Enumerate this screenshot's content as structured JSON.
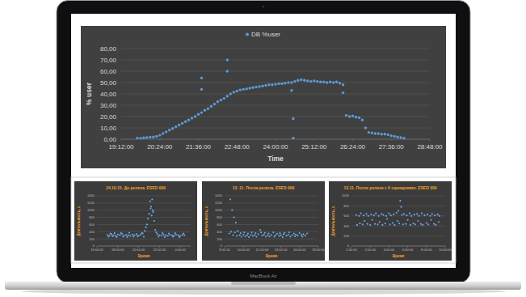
{
  "device": {
    "label": "MacBook Air"
  },
  "chart_data": [
    {
      "type": "scatter",
      "x_label": "Time",
      "y_label": "% user",
      "legend": "top",
      "grid": true,
      "xlim": [
        19.2,
        28.8
      ],
      "xticks": [
        {
          "value": 19.2,
          "label": "19:12:00"
        },
        {
          "value": 20.4,
          "label": "20:24:00"
        },
        {
          "value": 21.6,
          "label": "21:36:00"
        },
        {
          "value": 22.8,
          "label": "22:48:00"
        },
        {
          "value": 24,
          "label": "24:00:00"
        },
        {
          "value": 25.2,
          "label": "25:12:00"
        },
        {
          "value": 26.4,
          "label": "26:24:00"
        },
        {
          "value": 27.6,
          "label": "27:36:00"
        },
        {
          "value": 28.8,
          "label": "28:48:00"
        }
      ],
      "ylim": [
        0,
        80
      ],
      "yticks": [
        {
          "value": 0,
          "label": "0,00"
        },
        {
          "value": 10,
          "label": "10,00"
        },
        {
          "value": 20,
          "label": "20,00"
        },
        {
          "value": 30,
          "label": "30,00"
        },
        {
          "value": 40,
          "label": "40,00"
        },
        {
          "value": 50,
          "label": "50,00"
        },
        {
          "value": 60,
          "label": "60,00"
        },
        {
          "value": 70,
          "label": "70,00"
        },
        {
          "value": 80,
          "label": "80,00"
        }
      ],
      "series": [
        {
          "name": "DB %user",
          "color": "#5b9bd5",
          "marker": "circle",
          "x": [
            19.7,
            19.8,
            19.9,
            20.0,
            20.1,
            20.2,
            20.3,
            20.4,
            20.5,
            20.6,
            20.7,
            20.8,
            20.9,
            21.0,
            21.1,
            21.2,
            21.3,
            21.4,
            21.5,
            21.6,
            21.7,
            21.8,
            21.9,
            22.0,
            22.1,
            22.2,
            22.3,
            22.4,
            22.5,
            22.6,
            22.7,
            22.8,
            22.9,
            23.0,
            23.1,
            23.2,
            23.3,
            23.4,
            23.5,
            23.6,
            23.7,
            23.8,
            23.9,
            24.0,
            24.1,
            24.2,
            24.3,
            24.4,
            24.5,
            24.6,
            24.7,
            24.8,
            24.9,
            25.0,
            25.1,
            25.2,
            25.3,
            25.4,
            25.5,
            25.6,
            25.7,
            25.8,
            25.9,
            26.0,
            26.1,
            26.2,
            26.3,
            26.4,
            26.5,
            26.6,
            26.7,
            26.8,
            26.9,
            27.0,
            27.1,
            27.2,
            27.3,
            27.4,
            27.5,
            27.6,
            27.7,
            27.8,
            27.9,
            28.0,
            21.7,
            21.7,
            22.5,
            22.5,
            24.5,
            24.55,
            24.55,
            26.1
          ],
          "values": [
            1.0,
            0.8,
            1.2,
            1.5,
            1.8,
            2.0,
            2.5,
            3.5,
            5.0,
            6.5,
            8.0,
            9.5,
            11.0,
            12.5,
            14.0,
            15.5,
            17.0,
            18.5,
            20.0,
            22.0,
            23.5,
            25.5,
            27.0,
            29.0,
            31.0,
            33.0,
            34.5,
            36.0,
            38.0,
            40.0,
            41.5,
            42.5,
            43.5,
            44.0,
            44.5,
            45.0,
            45.5,
            46.0,
            46.5,
            47.0,
            47.5,
            48.0,
            48.0,
            48.5,
            49.0,
            49.0,
            49.5,
            50.0,
            50.0,
            51.0,
            52.0,
            52.5,
            52.0,
            51.5,
            51.0,
            51.5,
            51.0,
            50.5,
            50.5,
            50.0,
            50.5,
            50.0,
            50.5,
            49.5,
            48.0,
            21.0,
            20.0,
            20.5,
            19.5,
            19.0,
            17.0,
            10.0,
            6.0,
            5.5,
            5.0,
            5.0,
            4.5,
            4.5,
            4.0,
            3.0,
            2.5,
            2.0,
            1.5,
            1.0,
            54,
            44,
            70,
            60,
            43,
            18,
            1,
            41
          ]
        }
      ]
    },
    {
      "type": "scatter",
      "title": "24.10.15. До релиза. ESED 009",
      "x_label": "Время",
      "y_label": "Длительность, с",
      "grid": true,
      "color": "#6aa5e8",
      "marker": "circle",
      "xlim": [
        16,
        25
      ],
      "xticks": [
        {
          "value": 16,
          "label": "16:00:00"
        },
        {
          "value": 18,
          "label": "18:00:00"
        },
        {
          "value": 20,
          "label": "20:00:00"
        },
        {
          "value": 22,
          "label": "22:00:00"
        },
        {
          "value": 24,
          "label": "0:00:00"
        }
      ],
      "ylim": [
        0,
        1400
      ],
      "yticks": [
        0,
        200,
        400,
        600,
        800,
        1000,
        1200,
        1400
      ],
      "x": [
        17.0,
        17.1,
        17.2,
        17.3,
        17.4,
        17.5,
        17.6,
        17.7,
        17.8,
        17.9,
        18.0,
        18.2,
        18.3,
        18.4,
        18.5,
        18.6,
        18.8,
        18.9,
        19.0,
        19.1,
        19.2,
        19.4,
        19.5,
        19.6,
        19.8,
        19.9,
        20.0,
        20.2,
        20.3,
        20.4,
        20.5,
        20.6,
        20.7,
        20.8,
        20.9,
        21.0,
        21.1,
        21.15,
        21.2,
        21.25,
        21.3,
        21.35,
        21.4,
        21.5,
        21.6,
        21.7,
        21.8,
        21.9,
        22.0,
        22.2,
        22.3,
        22.4,
        22.5,
        22.6,
        22.8,
        22.9,
        23.0,
        23.2,
        23.3,
        23.4,
        23.5,
        23.6,
        23.8,
        23.9,
        24.0,
        24.2,
        24.3,
        24.4
      ],
      "values": [
        310,
        260,
        290,
        350,
        330,
        270,
        300,
        360,
        280,
        250,
        320,
        300,
        360,
        340,
        260,
        290,
        310,
        250,
        300,
        370,
        280,
        320,
        260,
        300,
        330,
        270,
        290,
        310,
        360,
        350,
        260,
        420,
        520,
        600,
        760,
        900,
        1250,
        1050,
        1100,
        850,
        1300,
        1000,
        950,
        700,
        450,
        380,
        330,
        260,
        300,
        290,
        360,
        320,
        250,
        300,
        280,
        350,
        310,
        300,
        260,
        290,
        360,
        320,
        300,
        250,
        280,
        310,
        350,
        300
      ]
    },
    {
      "type": "scatter",
      "title": "13. 11. После релиза. ESED 009",
      "x_label": "Время",
      "y_label": "Длительность, с",
      "grid": true,
      "color": "#6aa5e8",
      "marker": "circle",
      "xlim": [
        8,
        18
      ],
      "xticks": [
        {
          "value": 8,
          "label": "8:00:00"
        },
        {
          "value": 10,
          "label": "10:00:00"
        },
        {
          "value": 12,
          "label": "12:00:00"
        },
        {
          "value": 14,
          "label": "14:00:00"
        },
        {
          "value": 16,
          "label": "16:00:00"
        },
        {
          "value": 18,
          "label": "18:00:00"
        }
      ],
      "ylim": [
        0,
        1400
      ],
      "yticks": [
        0,
        200,
        400,
        600,
        800,
        1000,
        1200,
        1400
      ],
      "x": [
        8.5,
        8.6,
        8.7,
        8.8,
        8.9,
        9.0,
        9.1,
        9.2,
        9.3,
        9.4,
        9.6,
        9.7,
        9.8,
        10.0,
        10.1,
        10.2,
        10.4,
        10.5,
        10.6,
        10.8,
        10.9,
        11.0,
        11.2,
        11.3,
        11.4,
        11.6,
        11.8,
        11.9,
        12.0,
        12.2,
        12.3,
        12.4,
        12.6,
        12.7,
        12.8,
        13.0,
        13.2,
        13.3,
        13.4,
        13.6,
        13.8,
        13.9,
        14.0,
        14.2,
        14.3,
        14.4,
        14.6,
        14.8,
        14.9,
        15.0,
        15.2,
        15.4,
        15.5,
        15.6,
        15.8,
        16.0,
        16.2,
        16.3,
        16.4,
        16.6,
        16.8
      ],
      "values": [
        350,
        1300,
        400,
        1000,
        300,
        800,
        380,
        650,
        280,
        420,
        300,
        360,
        260,
        320,
        380,
        270,
        300,
        350,
        250,
        310,
        380,
        280,
        300,
        360,
        260,
        330,
        450,
        380,
        290,
        320,
        370,
        260,
        300,
        350,
        270,
        310,
        380,
        260,
        300,
        340,
        280,
        360,
        300,
        250,
        330,
        370,
        290,
        310,
        380,
        260,
        300,
        350,
        270,
        320,
        290,
        360,
        300,
        260,
        330,
        290,
        350
      ]
    },
    {
      "type": "scatter",
      "title": "13.11. После релиза с 6 сценариями. ESED 009",
      "x_label": "Время",
      "y_label": "Длительность, с",
      "grid": true,
      "color": "#6aa5e8",
      "marker": "circle",
      "xlim": [
        0,
        10
      ],
      "xticks": [
        {
          "value": 0,
          "label": "0:00:00"
        },
        {
          "value": 2,
          "label": "2:00:00"
        },
        {
          "value": 4,
          "label": "4:00:00"
        },
        {
          "value": 6,
          "label": "6:00:00"
        },
        {
          "value": 8,
          "label": "8:00:00"
        },
        {
          "value": 10,
          "label": "10:00:00"
        }
      ],
      "ylim": [
        0,
        1000
      ],
      "yticks": [
        0,
        200,
        400,
        600,
        800,
        1000
      ],
      "x": [
        0.5,
        0.6,
        0.8,
        0.9,
        1.0,
        1.2,
        1.3,
        1.4,
        1.6,
        1.7,
        1.8,
        2.0,
        2.1,
        2.2,
        2.4,
        2.5,
        2.6,
        2.8,
        2.9,
        3.0,
        3.2,
        3.3,
        3.4,
        3.6,
        3.7,
        3.8,
        4.0,
        4.1,
        4.2,
        4.4,
        4.5,
        4.6,
        4.8,
        4.9,
        5.0,
        5.1,
        5.2,
        5.3,
        5.4,
        5.5,
        5.6,
        5.8,
        5.9,
        6.0,
        6.2,
        6.3,
        6.4,
        6.6,
        6.7,
        6.8,
        7.0,
        7.1,
        7.2,
        7.4,
        7.5,
        7.6,
        7.8,
        8.0,
        8.1,
        8.2,
        8.4,
        8.5,
        8.6,
        8.8,
        8.9,
        9.0,
        9.2,
        9.3,
        9.4
      ],
      "values": [
        620,
        420,
        600,
        450,
        650,
        430,
        610,
        500,
        640,
        440,
        600,
        420,
        630,
        520,
        610,
        440,
        650,
        430,
        600,
        480,
        640,
        420,
        620,
        450,
        600,
        540,
        650,
        430,
        610,
        460,
        630,
        420,
        660,
        500,
        700,
        450,
        900,
        780,
        620,
        430,
        640,
        440,
        610,
        520,
        650,
        420,
        600,
        450,
        630,
        430,
        640,
        500,
        600,
        440,
        650,
        420,
        610,
        460,
        630,
        430,
        600,
        520,
        640,
        440,
        610,
        420,
        630,
        480,
        600
      ]
    }
  ]
}
